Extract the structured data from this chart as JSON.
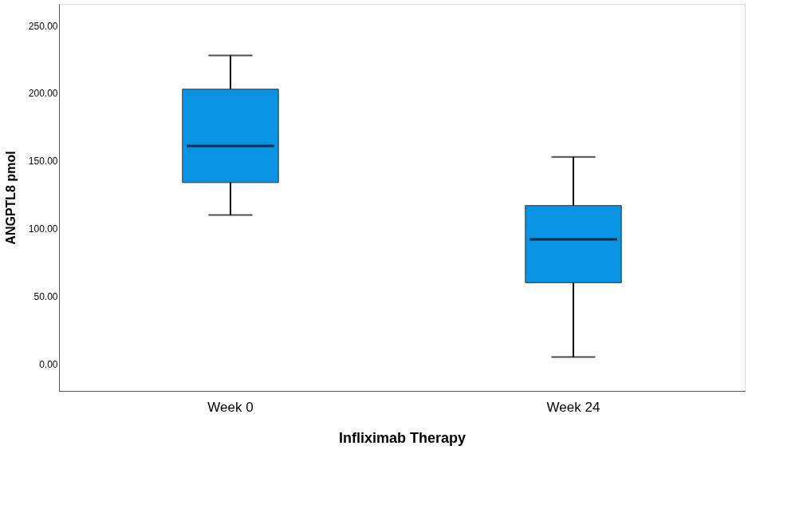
{
  "chart_data": {
    "type": "box",
    "xlabel": "Infliximab Therapy",
    "ylabel": "ANGPTL8 pmol",
    "categories": [
      "Week 0",
      "Week 24"
    ],
    "boxes": [
      {
        "low": 110,
        "q1": 134,
        "median": 161,
        "q3": 203,
        "high": 228
      },
      {
        "low": 5,
        "q1": 60,
        "median": 92,
        "q3": 117,
        "high": 153
      }
    ],
    "color": "#0b93e3",
    "ylim": [
      -20,
      266
    ],
    "yticks": [
      {
        "value": 0,
        "label": "0.00"
      },
      {
        "value": 50,
        "label": "50.00"
      },
      {
        "value": 100,
        "label": "100.00"
      },
      {
        "value": 150,
        "label": "150.00"
      },
      {
        "value": 200,
        "label": "200.00"
      },
      {
        "value": 250,
        "label": "250.00"
      }
    ],
    "grid": false
  }
}
